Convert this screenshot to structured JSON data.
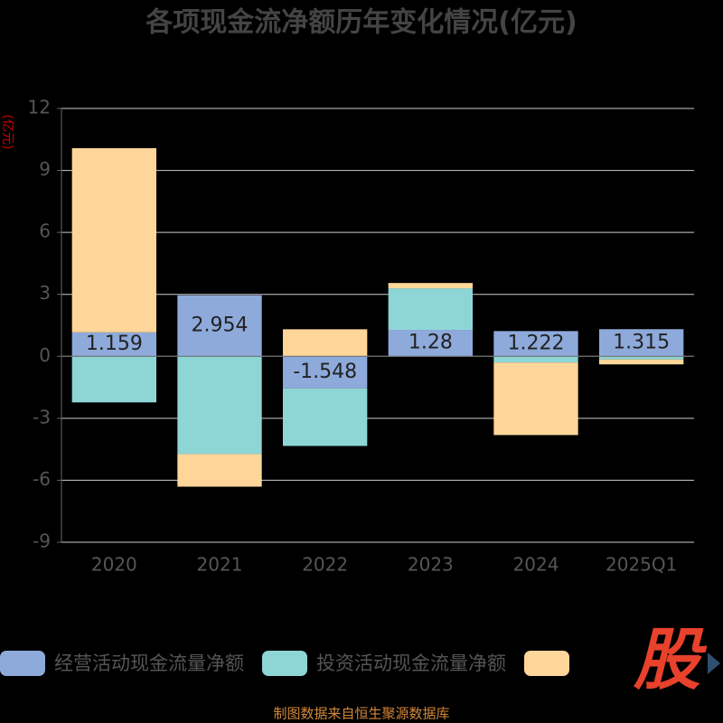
{
  "chart_data": {
    "type": "bar",
    "stacked": true,
    "title": "各项现金流净额历年变化情况(亿元)",
    "y_label": "(亿元)",
    "categories": [
      "2020",
      "2021",
      "2022",
      "2023",
      "2024",
      "2025Q1"
    ],
    "series": [
      {
        "name": "经营活动现金流量净额",
        "color": "#8eaadb",
        "values": [
          1.159,
          2.954,
          -1.548,
          1.28,
          1.222,
          1.315
        ]
      },
      {
        "name": "投资活动现金流量净额",
        "color": "#8ed6d6",
        "values": [
          -2.23,
          -4.73,
          -2.79,
          2.01,
          -0.3,
          -0.15
        ]
      },
      {
        "name": null,
        "color": "#ffd699",
        "values": [
          8.92,
          -1.58,
          1.31,
          0.26,
          -3.51,
          -0.24
        ]
      }
    ],
    "label_series": 0,
    "ylim": [
      -9,
      12
    ],
    "yticks": [
      -9,
      -6,
      -3,
      0,
      3,
      6,
      9,
      12
    ],
    "grid": true,
    "watermark": "股",
    "source": "制图数据来自恒生聚源数据库"
  }
}
